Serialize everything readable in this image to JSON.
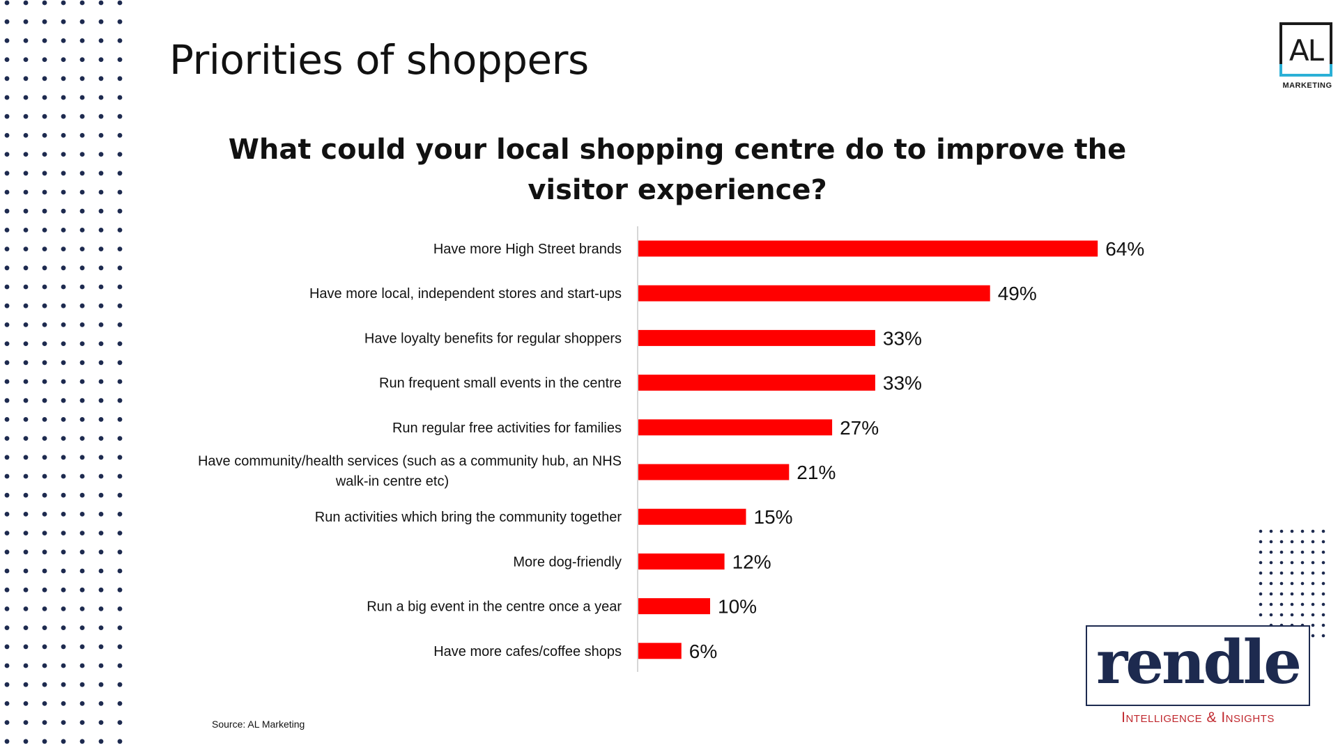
{
  "slide": {
    "title": "Priorities of shoppers",
    "source": "Source: AL Marketing"
  },
  "logos": {
    "al": {
      "letters": "AL",
      "subtitle": "MARKETING",
      "accent_color": "#2bb0d6"
    },
    "rendle": {
      "word": "rendle",
      "tagline": "Intelligence & Insights",
      "color": "#1d2a4f",
      "tagline_color": "#c0282e"
    }
  },
  "decor": {
    "dot_color": "#1d2a4f"
  },
  "chart_data": {
    "type": "bar",
    "orientation": "horizontal",
    "title_lines": [
      "What could your local shopping centre do to improve the",
      "visitor experience?"
    ],
    "xlabel": "",
    "ylabel": "",
    "xlim": [
      0,
      100
    ],
    "grid": false,
    "bar_color": "#ff0000",
    "categories": [
      [
        "Have more High Street brands"
      ],
      [
        "Have more local, independent stores and start-ups"
      ],
      [
        "Have loyalty benefits for regular shoppers"
      ],
      [
        "Run frequent small events in the centre"
      ],
      [
        "Run regular free activities for families"
      ],
      [
        "Have community/health services (such as a community hub, an NHS",
        "walk-in centre etc)"
      ],
      [
        "Run activities which bring the community together"
      ],
      [
        "More dog-friendly"
      ],
      [
        "Run a big event in the centre once a year"
      ],
      [
        "Have more cafes/coffee shops"
      ]
    ],
    "values": [
      64,
      49,
      33,
      33,
      27,
      21,
      15,
      12,
      10,
      6
    ],
    "value_labels": [
      "64%",
      "49%",
      "33%",
      "33%",
      "27%",
      "21%",
      "15%",
      "12%",
      "10%",
      "6%"
    ]
  }
}
